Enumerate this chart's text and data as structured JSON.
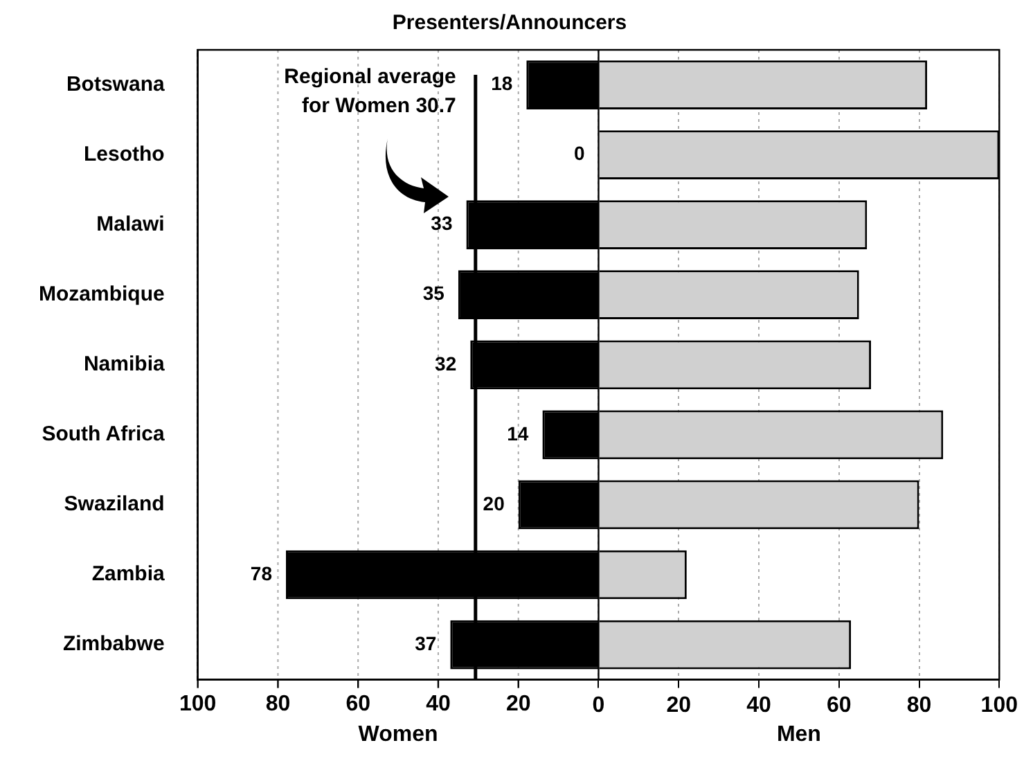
{
  "chart_data": {
    "type": "bar",
    "orientation": "horizontal",
    "title": "Presenters/Announcers",
    "categories": [
      "Botswana",
      "Lesotho",
      "Malawi",
      "Mozambique",
      "Namibia",
      "South Africa",
      "Swaziland",
      "Zambia",
      "Zimbabwe"
    ],
    "series": [
      {
        "name": "Women",
        "color": "#000000",
        "axis": "x2",
        "values": [
          18,
          0,
          33,
          35,
          32,
          14,
          20,
          78,
          37
        ],
        "value_labels": [
          "18",
          "0",
          "33",
          "35",
          "32",
          "14",
          "20",
          "78",
          "37"
        ]
      },
      {
        "name": "Men",
        "color": "#d0d0d0",
        "values": [
          82,
          100,
          67,
          65,
          68,
          86,
          80,
          22,
          63
        ]
      }
    ],
    "xlim": [
      -100,
      100
    ],
    "xticks": [
      0,
      20,
      40,
      60,
      80,
      100
    ],
    "x2lim": [
      100,
      -100
    ],
    "x2ticks": [
      100,
      80,
      60,
      40,
      20
    ],
    "ref_lines": [
      {
        "axis": "x2",
        "value": 30.7,
        "label": "Regional average\nfor Women 30.7"
      }
    ],
    "grid": "x",
    "legend": false
  }
}
